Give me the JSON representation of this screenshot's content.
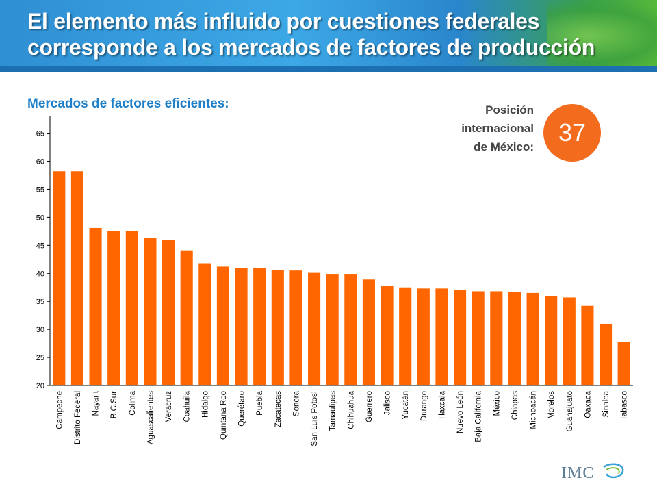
{
  "header": {
    "title": "El elemento más influido por cuestiones federales corresponde a los mercados de factores de producción"
  },
  "subtitle": "Mercados de factores eficientes:",
  "ranking": {
    "label": "Posición\ninternacional\nde México:",
    "value": "37",
    "badge_color": "#f36b1d"
  },
  "logo": {
    "text": "IMC"
  },
  "chart_data": {
    "type": "bar",
    "title": "",
    "xlabel": "",
    "ylabel": "",
    "ylim": [
      20,
      68
    ],
    "yticks": [
      20,
      25,
      30,
      35,
      40,
      45,
      50,
      55,
      60,
      65
    ],
    "bar_color": "#ff6600",
    "grid": false,
    "legend": "none",
    "categories": [
      "Campeche",
      "Distrito Federal",
      "Nayarit",
      "B.C.Sur",
      "Colima",
      "Aguascalientes",
      "Veracruz",
      "Coahuila",
      "Hidalgo",
      "Quintana Roo",
      "Querétaro",
      "Puebla",
      "Zacatecas",
      "Sonora",
      "San Luis Potosí",
      "Tamaulipas",
      "Chihuahua",
      "Guerrero",
      "Jalisco",
      "Yucatán",
      "Durango",
      "Tlaxcala",
      "Nuevo León",
      "Baja California",
      "México",
      "Chiapas",
      "Michoacán",
      "Morelos",
      "Guanajuato",
      "Oaxaca",
      "Sinaloa",
      "Tabasco"
    ],
    "values": [
      58.2,
      58.2,
      48.1,
      47.6,
      47.6,
      46.3,
      45.9,
      44.1,
      41.8,
      41.2,
      41.0,
      41.0,
      40.6,
      40.5,
      40.2,
      39.9,
      39.9,
      38.9,
      37.8,
      37.5,
      37.3,
      37.3,
      37.0,
      36.8,
      36.8,
      36.7,
      36.5,
      35.9,
      35.7,
      34.2,
      31.0,
      27.7
    ]
  }
}
